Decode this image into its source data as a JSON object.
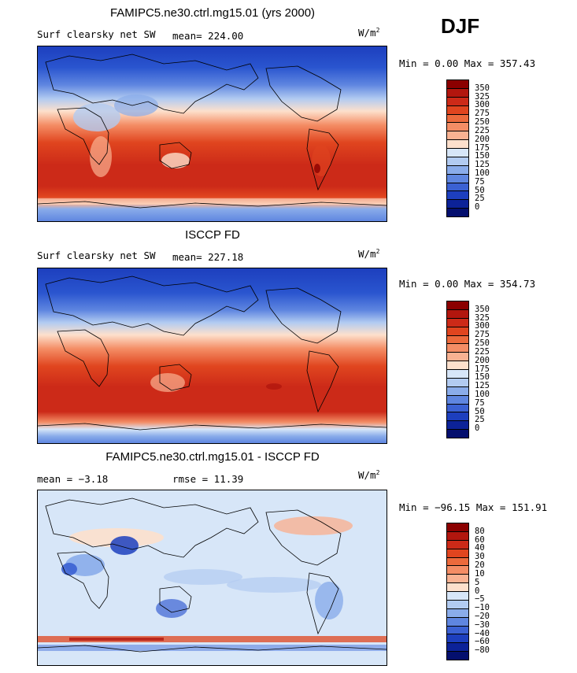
{
  "season": "DJF",
  "units": "W/m",
  "units_exp": "2",
  "panels": [
    {
      "title": "FAMIPC5.ne30.ctrl.mg15.01 (yrs 2000)",
      "left_label": "Surf clearsky net SW",
      "stat_label": "mean= 224.00",
      "minmax": "Min =    0.00 Max = 357.43"
    },
    {
      "title": "ISCCP FD",
      "left_label": "Surf clearsky net SW",
      "stat_label": "mean= 227.18",
      "minmax": "Min =    0.00 Max = 354.73"
    },
    {
      "title": "FAMIPC5.ne30.ctrl.mg15.01 - ISCCP FD",
      "left_label": "mean =  −3.18",
      "stat_label": "rmse =  11.39",
      "minmax": "Min = −96.15 Max = 151.91"
    }
  ],
  "colorbars": {
    "absolute": {
      "labels": [
        "350",
        "325",
        "300",
        "275",
        "250",
        "225",
        "200",
        "175",
        "150",
        "125",
        "100",
        "75",
        "50",
        "25",
        "0"
      ],
      "colors": [
        "#8b0000",
        "#b2160e",
        "#cc2a18",
        "#e0451f",
        "#ec6a3c",
        "#f48d65",
        "#f9b292",
        "#fde0cc",
        "#d7e6f8",
        "#b2cbf1",
        "#8aacea",
        "#5f86e0",
        "#3b61d3",
        "#1d3fbe",
        "#0c2298",
        "#040f6e"
      ]
    },
    "difference": {
      "labels": [
        "80",
        "60",
        "40",
        "30",
        "20",
        "10",
        "5",
        "0",
        "−5",
        "−10",
        "−20",
        "−30",
        "−40",
        "−60",
        "−80"
      ],
      "colors": [
        "#8b0000",
        "#b2160e",
        "#cc2a18",
        "#e0451f",
        "#ec6a3c",
        "#f48d65",
        "#f9b292",
        "#fde0cc",
        "#d7e6f8",
        "#b2cbf1",
        "#8aacea",
        "#5f86e0",
        "#3b61d3",
        "#1d3fbe",
        "#0c2298",
        "#040f6e"
      ]
    }
  }
}
